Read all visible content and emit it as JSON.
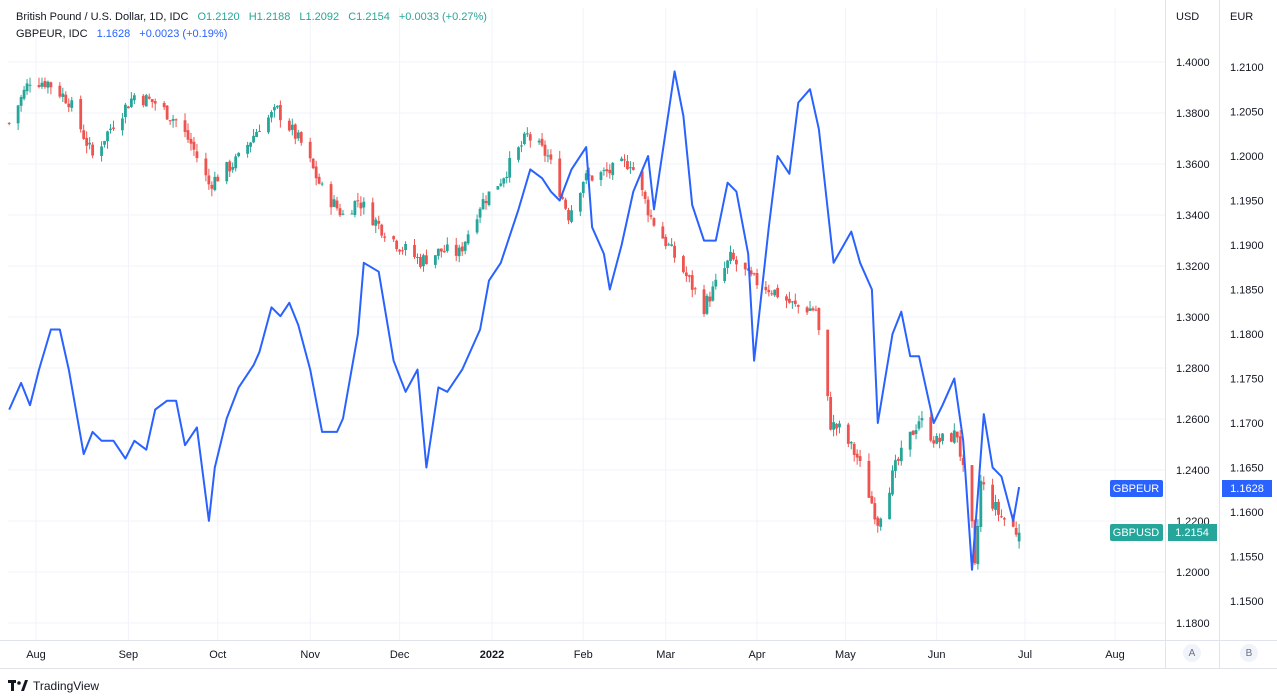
{
  "legend": {
    "main_symbol": "British Pound / U.S. Dollar, 1D, IDC",
    "open": "O1.2120",
    "high": "H1.2188",
    "low": "L1.2092",
    "close": "C1.2154",
    "change": "+0.0033 (+0.27%)",
    "compare_symbol": "GBPEUR, IDC",
    "compare_value": "1.1628",
    "compare_change": "+0.0023 (+0.19%)"
  },
  "scales": {
    "right_title": "USD",
    "far_right_title": "EUR",
    "button_a": "A",
    "button_b": "B"
  },
  "tags": {
    "gbpeur_label": "GBPEUR",
    "gbpeur_value": "1.1628",
    "gbpusd_label": "GBPUSD",
    "gbpusd_value": "1.2154"
  },
  "footer": {
    "brand": "TradingView"
  },
  "colors": {
    "up": "#26a69a",
    "down": "#ef5350",
    "line": "#2962ff",
    "grid": "#f0f3fa"
  },
  "chart_data": {
    "type": "line",
    "x_tick_labels": [
      "Aug",
      "Sep",
      "Oct",
      "Nov",
      "Dec",
      "2022",
      "Feb",
      "Mar",
      "Apr",
      "May",
      "Jun",
      "Jul",
      "Aug"
    ],
    "usd_axis": {
      "ticks": [
        "1.4000",
        "1.3800",
        "1.3600",
        "1.3400",
        "1.3200",
        "1.3000",
        "1.2800",
        "1.2600",
        "1.2400",
        "1.2200",
        "1.2000",
        "1.1800"
      ],
      "range": [
        1.175,
        1.4225
      ]
    },
    "eur_axis": {
      "ticks": [
        "1.2100",
        "1.2050",
        "1.2000",
        "1.1950",
        "1.1900",
        "1.1850",
        "1.1800",
        "1.1750",
        "1.1700",
        "1.1650",
        "1.1600",
        "1.1550",
        "1.1500"
      ],
      "range": [
        1.1465,
        1.2135
      ]
    },
    "series": [
      {
        "name": "GBPUSD",
        "style": "candles",
        "close_anchors": [
          [
            "2021-07-23",
            1.376
          ],
          [
            "2021-07-30",
            1.393
          ],
          [
            "2021-08-05",
            1.392
          ],
          [
            "2021-08-12",
            1.385
          ],
          [
            "2021-08-20",
            1.363
          ],
          [
            "2021-08-27",
            1.376
          ],
          [
            "2021-09-03",
            1.387
          ],
          [
            "2021-09-10",
            1.384
          ],
          [
            "2021-09-17",
            1.377
          ],
          [
            "2021-09-22",
            1.368
          ],
          [
            "2021-09-28",
            1.352
          ],
          [
            "2021-10-01",
            1.355
          ],
          [
            "2021-10-08",
            1.362
          ],
          [
            "2021-10-15",
            1.375
          ],
          [
            "2021-10-21",
            1.381
          ],
          [
            "2021-10-29",
            1.368
          ],
          [
            "2021-11-05",
            1.35
          ],
          [
            "2021-11-12",
            1.34
          ],
          [
            "2021-11-17",
            1.346
          ],
          [
            "2021-11-24",
            1.336
          ],
          [
            "2021-12-01",
            1.328
          ],
          [
            "2021-12-08",
            1.322
          ],
          [
            "2021-12-15",
            1.326
          ],
          [
            "2021-12-21",
            1.325
          ],
          [
            "2021-12-28",
            1.344
          ],
          [
            "2022-01-04",
            1.354
          ],
          [
            "2022-01-13",
            1.371
          ],
          [
            "2022-01-20",
            1.363
          ],
          [
            "2022-01-27",
            1.34
          ],
          [
            "2022-02-01",
            1.354
          ],
          [
            "2022-02-10",
            1.357
          ],
          [
            "2022-02-17",
            1.361
          ],
          [
            "2022-02-24",
            1.339
          ],
          [
            "2022-03-07",
            1.318
          ],
          [
            "2022-03-14",
            1.304
          ],
          [
            "2022-03-23",
            1.323
          ],
          [
            "2022-03-30",
            1.315
          ],
          [
            "2022-04-07",
            1.31
          ],
          [
            "2022-04-14",
            1.304
          ],
          [
            "2022-04-21",
            1.303
          ],
          [
            "2022-04-26",
            1.258
          ],
          [
            "2022-04-29",
            1.256
          ],
          [
            "2022-05-05",
            1.245
          ],
          [
            "2022-05-12",
            1.22
          ],
          [
            "2022-05-18",
            1.241
          ],
          [
            "2022-05-26",
            1.26
          ],
          [
            "2022-06-01",
            1.251
          ],
          [
            "2022-06-08",
            1.254
          ],
          [
            "2022-06-13",
            1.217
          ],
          [
            "2022-06-14",
            1.201
          ],
          [
            "2022-06-16",
            1.235
          ],
          [
            "2022-06-22",
            1.223
          ],
          [
            "2022-06-28",
            1.216
          ],
          [
            "2022-06-29",
            1.2154
          ]
        ]
      },
      {
        "name": "GBPEUR",
        "style": "line",
        "points": [
          [
            "2021-07-23",
            1.1715
          ],
          [
            "2021-07-27",
            1.1745
          ],
          [
            "2021-07-30",
            1.172
          ],
          [
            "2021-08-02",
            1.176
          ],
          [
            "2021-08-06",
            1.1805
          ],
          [
            "2021-08-09",
            1.1805
          ],
          [
            "2021-08-12",
            1.176
          ],
          [
            "2021-08-17",
            1.1665
          ],
          [
            "2021-08-20",
            1.169
          ],
          [
            "2021-08-23",
            1.168
          ],
          [
            "2021-08-27",
            1.168
          ],
          [
            "2021-08-31",
            1.166
          ],
          [
            "2021-09-03",
            1.168
          ],
          [
            "2021-09-07",
            1.167
          ],
          [
            "2021-09-10",
            1.1715
          ],
          [
            "2021-09-14",
            1.1725
          ],
          [
            "2021-09-17",
            1.1725
          ],
          [
            "2021-09-20",
            1.1675
          ],
          [
            "2021-09-24",
            1.1695
          ],
          [
            "2021-09-28",
            1.159
          ],
          [
            "2021-09-30",
            1.165
          ],
          [
            "2021-10-04",
            1.1705
          ],
          [
            "2021-10-08",
            1.174
          ],
          [
            "2021-10-13",
            1.1765
          ],
          [
            "2021-10-15",
            1.178
          ],
          [
            "2021-10-19",
            1.183
          ],
          [
            "2021-10-22",
            1.182
          ],
          [
            "2021-10-25",
            1.1835
          ],
          [
            "2021-10-28",
            1.181
          ],
          [
            "2021-11-01",
            1.176
          ],
          [
            "2021-11-05",
            1.169
          ],
          [
            "2021-11-10",
            1.169
          ],
          [
            "2021-11-12",
            1.1705
          ],
          [
            "2021-11-17",
            1.18
          ],
          [
            "2021-11-19",
            1.188
          ],
          [
            "2021-11-24",
            1.187
          ],
          [
            "2021-11-29",
            1.177
          ],
          [
            "2021-12-03",
            1.1735
          ],
          [
            "2021-12-07",
            1.176
          ],
          [
            "2021-12-10",
            1.165
          ],
          [
            "2021-12-14",
            1.174
          ],
          [
            "2021-12-17",
            1.1735
          ],
          [
            "2021-12-22",
            1.176
          ],
          [
            "2021-12-28",
            1.1805
          ],
          [
            "2021-12-31",
            1.186
          ],
          [
            "2022-01-04",
            1.188
          ],
          [
            "2022-01-10",
            1.194
          ],
          [
            "2022-01-14",
            1.1985
          ],
          [
            "2022-01-18",
            1.1975
          ],
          [
            "2022-01-21",
            1.196
          ],
          [
            "2022-01-24",
            1.195
          ],
          [
            "2022-01-28",
            1.1985
          ],
          [
            "2022-02-02",
            1.201
          ],
          [
            "2022-02-04",
            1.192
          ],
          [
            "2022-02-08",
            1.189
          ],
          [
            "2022-02-10",
            1.185
          ],
          [
            "2022-02-14",
            1.19
          ],
          [
            "2022-02-18",
            1.196
          ],
          [
            "2022-02-23",
            1.2
          ],
          [
            "2022-02-25",
            1.194
          ],
          [
            "2022-03-02",
            1.205
          ],
          [
            "2022-03-04",
            1.2095
          ],
          [
            "2022-03-07",
            1.2045
          ],
          [
            "2022-03-10",
            1.1945
          ],
          [
            "2022-03-14",
            1.1905
          ],
          [
            "2022-03-18",
            1.1905
          ],
          [
            "2022-03-22",
            1.197
          ],
          [
            "2022-03-25",
            1.196
          ],
          [
            "2022-03-29",
            1.189
          ],
          [
            "2022-03-31",
            1.177
          ],
          [
            "2022-04-05",
            1.192
          ],
          [
            "2022-04-08",
            1.2
          ],
          [
            "2022-04-12",
            1.198
          ],
          [
            "2022-04-15",
            1.206
          ],
          [
            "2022-04-19",
            1.2075
          ],
          [
            "2022-04-22",
            1.203
          ],
          [
            "2022-04-27",
            1.188
          ],
          [
            "2022-05-03",
            1.1915
          ],
          [
            "2022-05-06",
            1.188
          ],
          [
            "2022-05-10",
            1.185
          ],
          [
            "2022-05-12",
            1.17
          ],
          [
            "2022-05-17",
            1.18
          ],
          [
            "2022-05-20",
            1.1825
          ],
          [
            "2022-05-23",
            1.1775
          ],
          [
            "2022-05-26",
            1.1775
          ],
          [
            "2022-05-31",
            1.17
          ],
          [
            "2022-06-03",
            1.172
          ],
          [
            "2022-06-07",
            1.175
          ],
          [
            "2022-06-10",
            1.168
          ],
          [
            "2022-06-13",
            1.1535
          ],
          [
            "2022-06-15",
            1.162
          ],
          [
            "2022-06-17",
            1.171
          ],
          [
            "2022-06-20",
            1.165
          ],
          [
            "2022-06-23",
            1.164
          ],
          [
            "2022-06-27",
            1.159
          ],
          [
            "2022-06-29",
            1.1628
          ]
        ]
      }
    ]
  }
}
